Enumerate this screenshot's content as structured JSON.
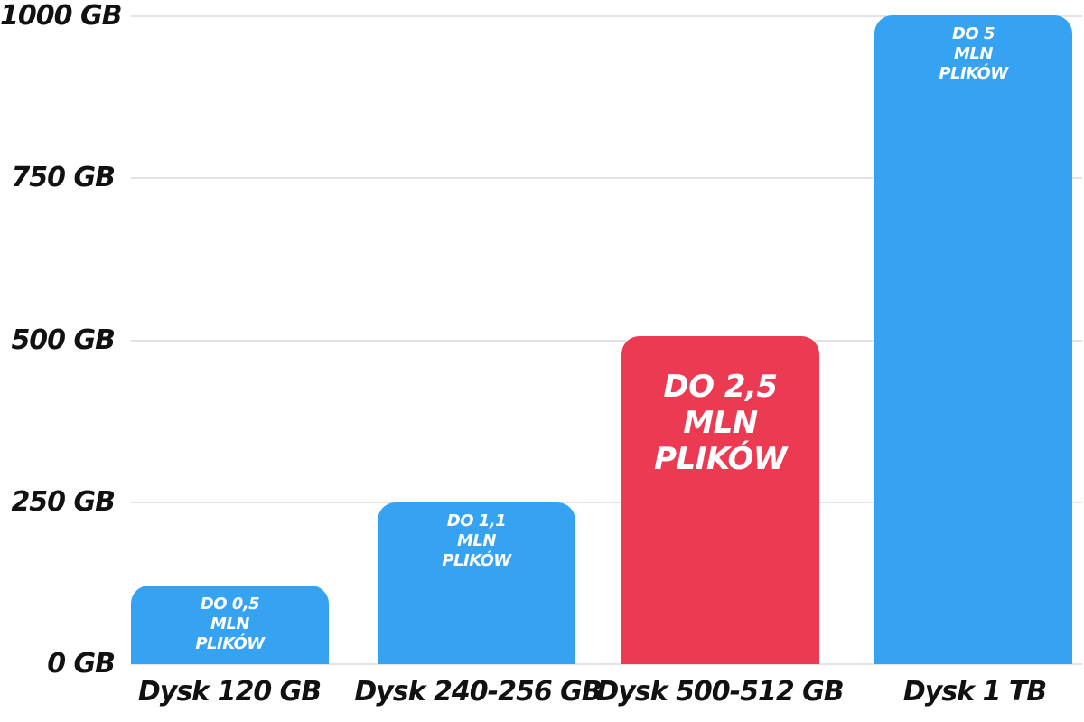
{
  "chart_data": {
    "type": "bar",
    "title": "",
    "categories": [
      "Dysk 120 GB",
      "Dysk 240-256 GB",
      "Dysk 500-512 GB",
      "Dysk 1 TB"
    ],
    "values": [
      120,
      248,
      505,
      1000
    ],
    "bar_labels": [
      "DO 0,5\nMLN\nPLIKÓW",
      "DO 1,1\nMLN\nPLIKÓW",
      "DO 2,5\nMLN\nPLIKÓW",
      "DO 5\nMLN\nPLIKÓW"
    ],
    "bar_colors": [
      "#35A3F1",
      "#35A3F1",
      "#EC3A52",
      "#35A3F1"
    ],
    "highlight_index": 2,
    "y_ticks": [
      {
        "value": 0,
        "label": "0 GB"
      },
      {
        "value": 250,
        "label": "250 GB"
      },
      {
        "value": 500,
        "label": "500 GB"
      },
      {
        "value": 750,
        "label": "750 GB"
      },
      {
        "value": 1000,
        "label": "1000 GB"
      }
    ],
    "ylim": [
      0,
      1000
    ],
    "grid": true,
    "legend": "none",
    "colors": {
      "bar_blue": "#35A3F1",
      "bar_red": "#EC3A52",
      "grid_line": "#E3E3E3",
      "axis_text": "#111111",
      "bar_text": "#FFFFFF",
      "background": "#FFFFFF"
    }
  }
}
